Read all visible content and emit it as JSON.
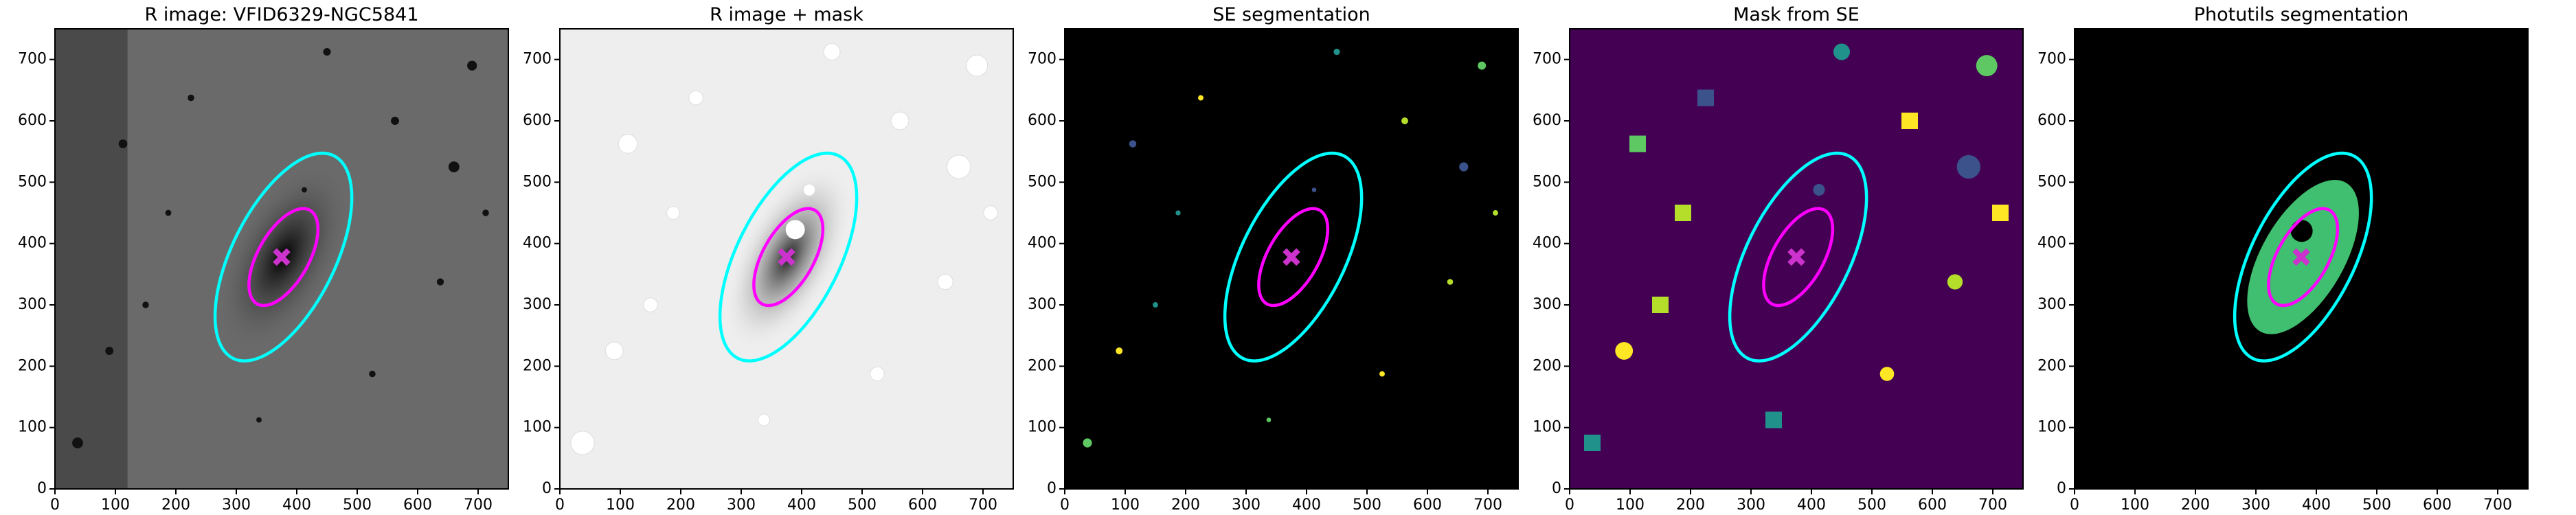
{
  "chart_data": [
    {
      "type": "image",
      "title": "R image: VFID6329-NGC5841",
      "xlim": [
        0,
        750
      ],
      "ylim": [
        0,
        750
      ],
      "xticks": [
        0,
        100,
        200,
        300,
        400,
        500,
        600,
        700
      ],
      "yticks": [
        0,
        100,
        200,
        300,
        400,
        500,
        600,
        700
      ],
      "background": "#6a6a6a",
      "ellipses": [
        {
          "color": "#00ffff",
          "cx": 378,
          "cy": 378,
          "a": 185,
          "b": 85,
          "angle": 63
        },
        {
          "color": "#ff00ff",
          "cx": 378,
          "cy": 378,
          "a": 88,
          "b": 42,
          "angle": 60
        }
      ],
      "marker": {
        "x": 375,
        "y": 378,
        "color": "#cc33cc"
      }
    },
    {
      "type": "image",
      "title": "R image + mask",
      "xlim": [
        0,
        750
      ],
      "ylim": [
        0,
        750
      ],
      "xticks": [
        0,
        100,
        200,
        300,
        400,
        500,
        600,
        700
      ],
      "yticks": [
        0,
        100,
        200,
        300,
        400,
        500,
        600,
        700
      ],
      "background": "#eeeeee",
      "ellipses": [
        {
          "color": "#00ffff",
          "cx": 378,
          "cy": 378,
          "a": 185,
          "b": 85,
          "angle": 63
        },
        {
          "color": "#ff00ff",
          "cx": 378,
          "cy": 378,
          "a": 88,
          "b": 42,
          "angle": 60
        }
      ],
      "marker": {
        "x": 375,
        "y": 378,
        "color": "#cc33cc"
      }
    },
    {
      "type": "image",
      "title": "SE segmentation",
      "xlim": [
        0,
        750
      ],
      "ylim": [
        0,
        750
      ],
      "xticks": [
        0,
        100,
        200,
        300,
        400,
        500,
        600,
        700
      ],
      "yticks": [
        0,
        100,
        200,
        300,
        400,
        500,
        600,
        700
      ],
      "background": "#000000",
      "ellipses": [
        {
          "color": "#00ffff",
          "cx": 378,
          "cy": 378,
          "a": 185,
          "b": 85,
          "angle": 63
        },
        {
          "color": "#ff00ff",
          "cx": 378,
          "cy": 378,
          "a": 88,
          "b": 42,
          "angle": 60
        }
      ],
      "marker": {
        "x": 375,
        "y": 378,
        "color": "#cc33cc"
      }
    },
    {
      "type": "image",
      "title": "Mask from SE",
      "xlim": [
        0,
        750
      ],
      "ylim": [
        0,
        750
      ],
      "xticks": [
        0,
        100,
        200,
        300,
        400,
        500,
        600,
        700
      ],
      "yticks": [
        0,
        100,
        200,
        300,
        400,
        500,
        600,
        700
      ],
      "background": "#440154",
      "ellipses": [
        {
          "color": "#00ffff",
          "cx": 378,
          "cy": 378,
          "a": 185,
          "b": 85,
          "angle": 63
        },
        {
          "color": "#ff00ff",
          "cx": 378,
          "cy": 378,
          "a": 88,
          "b": 42,
          "angle": 60
        }
      ],
      "marker": {
        "x": 375,
        "y": 378,
        "color": "#cc33cc"
      }
    },
    {
      "type": "image",
      "title": "Photutils segmentation",
      "xlim": [
        0,
        750
      ],
      "ylim": [
        0,
        750
      ],
      "xticks": [
        0,
        100,
        200,
        300,
        400,
        500,
        600,
        700
      ],
      "yticks": [
        0,
        100,
        200,
        300,
        400,
        500,
        600,
        700
      ],
      "background": "#000000",
      "ellipses": [
        {
          "color": "#00ffff",
          "cx": 378,
          "cy": 378,
          "a": 185,
          "b": 85,
          "angle": 63
        },
        {
          "color": "#ff00ff",
          "cx": 378,
          "cy": 378,
          "a": 88,
          "b": 42,
          "angle": 60
        }
      ],
      "marker": {
        "x": 375,
        "y": 378,
        "color": "#cc33cc"
      }
    }
  ]
}
